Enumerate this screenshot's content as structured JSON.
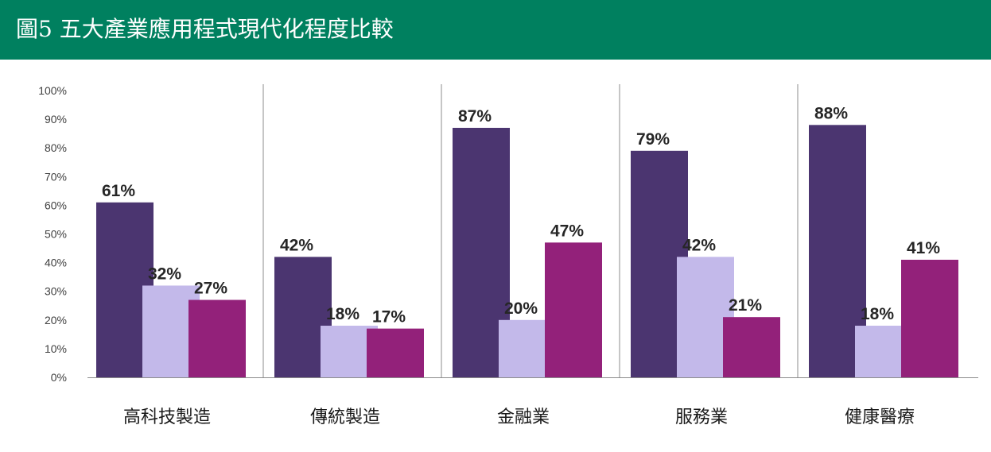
{
  "header": {
    "title": "圖5 五大產業應用程式現代化程度比較",
    "background": "#00805f"
  },
  "chart_data": {
    "type": "bar",
    "title": "",
    "xlabel": "",
    "ylabel": "",
    "ylim": [
      0,
      100
    ],
    "y_ticks": [
      "0%",
      "10%",
      "20%",
      "30%",
      "40%",
      "50%",
      "60%",
      "70%",
      "80%",
      "90%",
      "100%"
    ],
    "grid": false,
    "legend": "none",
    "categories": [
      "高科技製造",
      "傳統製造",
      "金融業",
      "服務業",
      "健康醫療"
    ],
    "series": [
      {
        "color": "#4b3570",
        "values": [
          61,
          42,
          87,
          79,
          88
        ]
      },
      {
        "color": "#c3b9ea",
        "values": [
          32,
          18,
          20,
          42,
          18
        ]
      },
      {
        "color": "#93217a",
        "values": [
          27,
          17,
          47,
          21,
          41
        ]
      }
    ],
    "data_labels": [
      [
        "61%",
        "42%",
        "87%",
        "79%",
        "88%"
      ],
      [
        "32%",
        "18%",
        "20%",
        "42%",
        "18%"
      ],
      [
        "27%",
        "17%",
        "47%",
        "21%",
        "41%"
      ]
    ],
    "axis_color": "#8c8c8c",
    "separator_color": "#8c8c8c"
  }
}
